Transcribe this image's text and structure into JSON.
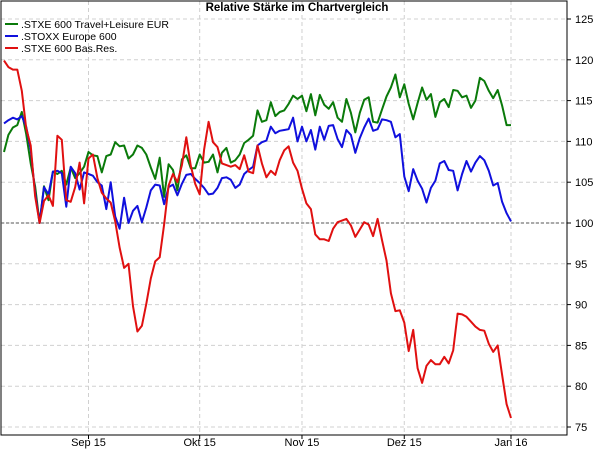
{
  "chart_data": {
    "type": "line",
    "title": "Relative Stärke im Chartvergleich",
    "xlabel": "",
    "ylabel": "",
    "ylim": [
      75,
      126
    ],
    "y_ticks": [
      75,
      80,
      85,
      90,
      95,
      100,
      105,
      110,
      115,
      120,
      125
    ],
    "x_tick_labels": [
      "Sep 15",
      "Okt 15",
      "Nov 15",
      "Dez 15",
      "Jan 16"
    ],
    "x_tick_index": [
      19,
      44,
      67,
      90,
      114
    ],
    "reference_line": 100,
    "grid": true,
    "legend_position": "top-left",
    "series": [
      {
        "name": ".STXE 600 Travel+Leisure EUR",
        "color": "#0a7a0a",
        "values": [
          108.7,
          110.8,
          111.7,
          112.0,
          113.6,
          110.9,
          107.3,
          104.5,
          100.0,
          104.5,
          102.8,
          106.3,
          106.0,
          106.4,
          104.7,
          106.8,
          105.5,
          106.1,
          106.9,
          108.7,
          108.3,
          108.2,
          106.2,
          108.2,
          108.4,
          109.9,
          109.4,
          109.5,
          107.9,
          108.4,
          109.5,
          109.2,
          108.4,
          106.8,
          105.4,
          108.0,
          103.2,
          107.2,
          106.5,
          104.0,
          107.8,
          108.3,
          106.7,
          106.7,
          108.4,
          107.4,
          107.5,
          108.4,
          106.2,
          108.6,
          109.2,
          107.4,
          107.7,
          108.4,
          109.8,
          110.2,
          110.7,
          113.8,
          112.4,
          112.6,
          114.8,
          113.1,
          113.6,
          113.8,
          114.6,
          115.6,
          115.2,
          115.6,
          113.7,
          115.8,
          113.2,
          115.7,
          114.5,
          114.0,
          114.8,
          112.9,
          112.4,
          115.2,
          113.5,
          111.1,
          113.5,
          115.1,
          115.4,
          112.4,
          112.3,
          113.9,
          115.5,
          116.6,
          118.2,
          115.4,
          117.0,
          114.6,
          112.7,
          114.7,
          116.6,
          115.1,
          115.8,
          113.0,
          114.8,
          115.2,
          114.2,
          116.3,
          116.2,
          115.4,
          115.6,
          114.1,
          115.0,
          117.8,
          117.4,
          116.2,
          115.3,
          116.3,
          114.4,
          112.0,
          112.0
        ]
      },
      {
        "name": ".STOXX Europe 600",
        "color": "#1010dd",
        "values": [
          112.2,
          112.6,
          112.9,
          112.7,
          113.1,
          111.8,
          109.0,
          103.7,
          100.0,
          104.4,
          103.5,
          106.3,
          106.4,
          106.1,
          102.0,
          106.9,
          106.1,
          104.1,
          106.2,
          106.0,
          105.8,
          105.0,
          104.6,
          101.7,
          105.0,
          100.8,
          99.3,
          103.1,
          100.0,
          101.5,
          102.1,
          100.1,
          101.9,
          104.0,
          104.7,
          104.6,
          102.3,
          104.4,
          104.7,
          103.4,
          104.8,
          105.9,
          106.0,
          105.4,
          104.9,
          104.3,
          103.5,
          103.6,
          104.3,
          105.5,
          105.6,
          105.3,
          104.3,
          104.7,
          106.0,
          106.5,
          106.9,
          109.5,
          109.9,
          110.1,
          111.8,
          111.0,
          111.3,
          111.4,
          111.5,
          112.9,
          110.0,
          111.8,
          110.0,
          111.4,
          109.0,
          111.8,
          110.2,
          111.9,
          112.0,
          110.3,
          109.3,
          111.4,
          110.8,
          108.6,
          110.4,
          111.7,
          112.8,
          111.3,
          111.5,
          112.7,
          112.6,
          112.4,
          110.5,
          110.9,
          105.7,
          103.9,
          106.6,
          105.2,
          104.2,
          102.5,
          104.3,
          105.2,
          107.3,
          107.6,
          106.5,
          106.4,
          104.0,
          106.0,
          107.6,
          106.3,
          107.4,
          108.2,
          107.7,
          106.4,
          104.6,
          104.9,
          102.6,
          101.2,
          100.2
        ]
      },
      {
        "name": ".STXE 600 Bas.Res.",
        "color": "#e01010",
        "values": [
          119.9,
          119.1,
          118.8,
          118.8,
          116.2,
          111.6,
          109.5,
          103.3,
          100.0,
          102.7,
          103.4,
          102.1,
          110.7,
          110.2,
          102.8,
          102.6,
          104.4,
          107.4,
          102.4,
          107.9,
          108.4,
          105.5,
          103.7,
          103.0,
          102.5,
          100.2,
          97.0,
          94.5,
          95.0,
          89.8,
          86.7,
          87.4,
          90.1,
          93.2,
          95.3,
          95.8,
          99.8,
          104.6,
          106.0,
          105.0,
          107.1,
          110.5,
          107.0,
          104.8,
          103.5,
          109.0,
          112.4,
          109.9,
          109.3,
          107.3,
          107.1,
          106.9,
          107.1,
          106.6,
          108.3,
          106.3,
          106.1,
          109.5,
          107.3,
          105.6,
          106.4,
          105.9,
          107.7,
          108.9,
          109.4,
          107.4,
          106.4,
          104.2,
          102.4,
          101.7,
          98.6,
          98.0,
          98.0,
          97.8,
          99.3,
          100.1,
          100.3,
          100.5,
          99.7,
          98.3,
          99.2,
          100.1,
          99.8,
          98.4,
          100.5,
          97.9,
          95.4,
          91.4,
          89.2,
          89.3,
          87.8,
          84.3,
          86.9,
          82.2,
          80.4,
          82.5,
          83.2,
          82.7,
          82.7,
          83.6,
          82.8,
          84.4,
          88.9,
          88.8,
          88.5,
          87.9,
          87.3,
          86.9,
          86.8,
          85.2,
          84.2,
          85.0,
          81.4,
          77.8,
          76.1
        ]
      }
    ]
  }
}
